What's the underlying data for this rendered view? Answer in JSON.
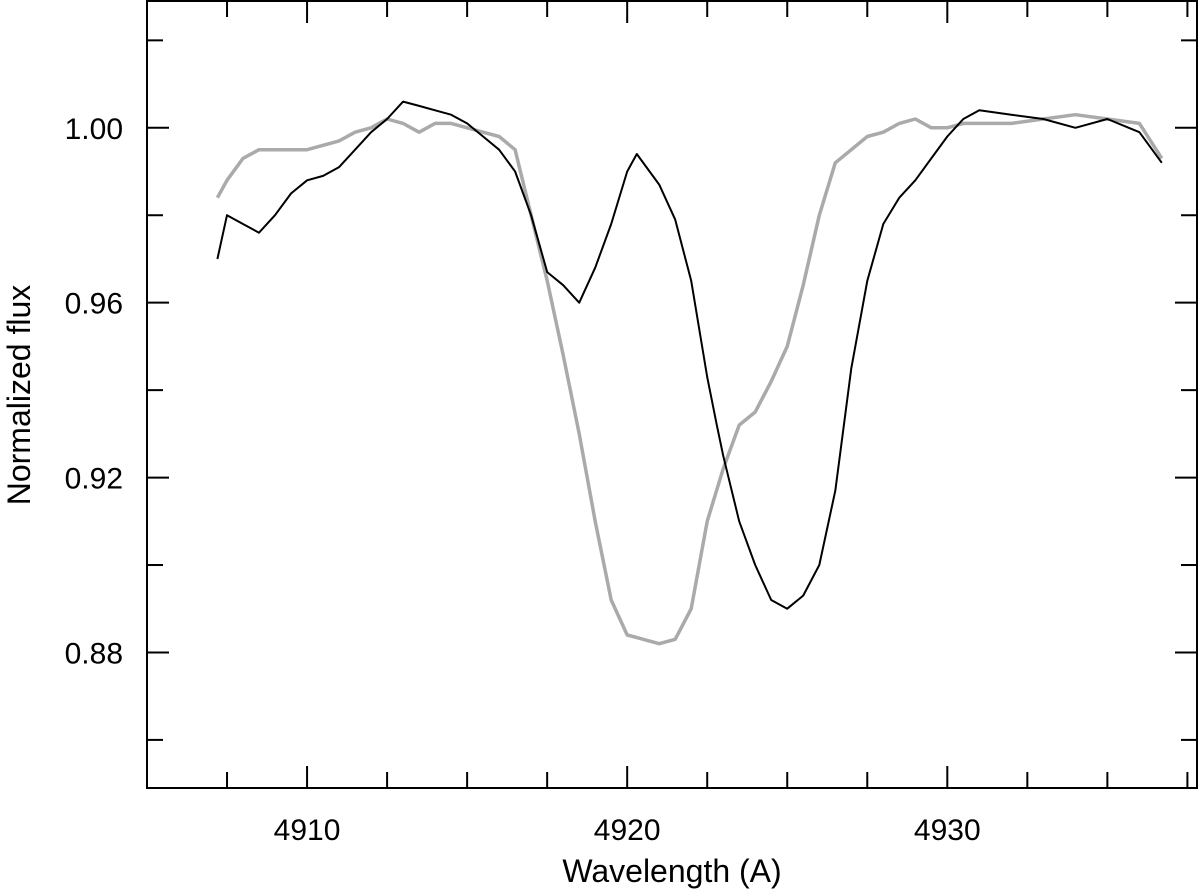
{
  "chart_data": {
    "type": "line",
    "title": "",
    "xlabel": "Wavelength (A)",
    "ylabel": "Normalized flux",
    "xlim": [
      4905,
      4937.8
    ],
    "ylim": [
      0.849,
      1.029
    ],
    "x_major_ticks": [
      4910,
      4920,
      4930
    ],
    "x_minor_ticks": [
      4907.5,
      4912.5,
      4915,
      4917.5,
      4922.5,
      4925,
      4927.5,
      4932.5,
      4935,
      4937.5
    ],
    "y_major_ticks": [
      0.88,
      0.92,
      0.96,
      1.0
    ],
    "y_minor_ticks": [
      0.86,
      0.9,
      0.94,
      0.98,
      1.02
    ],
    "y_tick_labels": [
      "0.88",
      "0.92",
      "0.96",
      "1.00"
    ],
    "x_tick_labels": [
      "4910",
      "4920",
      "4930"
    ],
    "grid": false,
    "colors": {
      "black_series": "#000000",
      "gray_series": "#aaaaaa"
    },
    "series": [
      {
        "color": "#000000",
        "points": [
          [
            4907.2,
            0.97
          ],
          [
            4907.5,
            0.98
          ],
          [
            4908.0,
            0.978
          ],
          [
            4908.5,
            0.976
          ],
          [
            4909.0,
            0.98
          ],
          [
            4909.5,
            0.985
          ],
          [
            4910.0,
            0.988
          ],
          [
            4910.5,
            0.989
          ],
          [
            4911.0,
            0.991
          ],
          [
            4911.5,
            0.995
          ],
          [
            4912.0,
            0.999
          ],
          [
            4912.5,
            1.002
          ],
          [
            4913.0,
            1.006
          ],
          [
            4913.5,
            1.005
          ],
          [
            4914.0,
            1.004
          ],
          [
            4914.5,
            1.003
          ],
          [
            4915.0,
            1.001
          ],
          [
            4915.5,
            0.998
          ],
          [
            4916.0,
            0.995
          ],
          [
            4916.5,
            0.99
          ],
          [
            4917.0,
            0.98
          ],
          [
            4917.5,
            0.967
          ],
          [
            4918.0,
            0.964
          ],
          [
            4918.5,
            0.96
          ],
          [
            4919.0,
            0.968
          ],
          [
            4919.5,
            0.978
          ],
          [
            4920.0,
            0.99
          ],
          [
            4920.3,
            0.994
          ],
          [
            4920.7,
            0.99
          ],
          [
            4921.0,
            0.987
          ],
          [
            4921.5,
            0.979
          ],
          [
            4922.0,
            0.965
          ],
          [
            4922.5,
            0.943
          ],
          [
            4922.8,
            0.932
          ],
          [
            4923.0,
            0.925
          ],
          [
            4923.5,
            0.91
          ],
          [
            4924.0,
            0.9
          ],
          [
            4924.5,
            0.892
          ],
          [
            4925.0,
            0.89
          ],
          [
            4925.5,
            0.893
          ],
          [
            4926.0,
            0.9
          ],
          [
            4926.5,
            0.917
          ],
          [
            4927.0,
            0.945
          ],
          [
            4927.5,
            0.965
          ],
          [
            4928.0,
            0.978
          ],
          [
            4928.5,
            0.984
          ],
          [
            4929.0,
            0.988
          ],
          [
            4929.5,
            0.993
          ],
          [
            4930.0,
            0.998
          ],
          [
            4930.5,
            1.002
          ],
          [
            4931.0,
            1.004
          ],
          [
            4932.0,
            1.003
          ],
          [
            4933.0,
            1.002
          ],
          [
            4934.0,
            1.0
          ],
          [
            4935.0,
            1.002
          ],
          [
            4936.0,
            0.999
          ],
          [
            4936.7,
            0.992
          ]
        ]
      },
      {
        "color": "#aaaaaa",
        "points": [
          [
            4907.2,
            0.984
          ],
          [
            4907.5,
            0.988
          ],
          [
            4908.0,
            0.993
          ],
          [
            4908.5,
            0.995
          ],
          [
            4909.0,
            0.995
          ],
          [
            4909.5,
            0.995
          ],
          [
            4910.0,
            0.995
          ],
          [
            4910.5,
            0.996
          ],
          [
            4911.0,
            0.997
          ],
          [
            4911.5,
            0.999
          ],
          [
            4912.0,
            1.0
          ],
          [
            4912.5,
            1.002
          ],
          [
            4913.0,
            1.001
          ],
          [
            4913.5,
            0.999
          ],
          [
            4914.0,
            1.001
          ],
          [
            4914.5,
            1.001
          ],
          [
            4915.0,
            1.0
          ],
          [
            4915.5,
            0.999
          ],
          [
            4916.0,
            0.998
          ],
          [
            4916.5,
            0.995
          ],
          [
            4917.0,
            0.98
          ],
          [
            4917.5,
            0.965
          ],
          [
            4918.0,
            0.948
          ],
          [
            4918.5,
            0.93
          ],
          [
            4919.0,
            0.91
          ],
          [
            4919.5,
            0.892
          ],
          [
            4920.0,
            0.884
          ],
          [
            4920.5,
            0.883
          ],
          [
            4921.0,
            0.882
          ],
          [
            4921.5,
            0.883
          ],
          [
            4922.0,
            0.89
          ],
          [
            4922.5,
            0.91
          ],
          [
            4923.0,
            0.922
          ],
          [
            4923.5,
            0.932
          ],
          [
            4924.0,
            0.935
          ],
          [
            4924.5,
            0.942
          ],
          [
            4925.0,
            0.95
          ],
          [
            4925.5,
            0.964
          ],
          [
            4926.0,
            0.98
          ],
          [
            4926.5,
            0.992
          ],
          [
            4927.0,
            0.995
          ],
          [
            4927.5,
            0.998
          ],
          [
            4928.0,
            0.999
          ],
          [
            4928.5,
            1.001
          ],
          [
            4929.0,
            1.002
          ],
          [
            4929.5,
            1.0
          ],
          [
            4930.0,
            1.0
          ],
          [
            4930.5,
            1.001
          ],
          [
            4931.0,
            1.001
          ],
          [
            4932.0,
            1.001
          ],
          [
            4933.0,
            1.002
          ],
          [
            4934.0,
            1.003
          ],
          [
            4935.0,
            1.002
          ],
          [
            4936.0,
            1.001
          ],
          [
            4936.7,
            0.993
          ]
        ]
      }
    ]
  }
}
